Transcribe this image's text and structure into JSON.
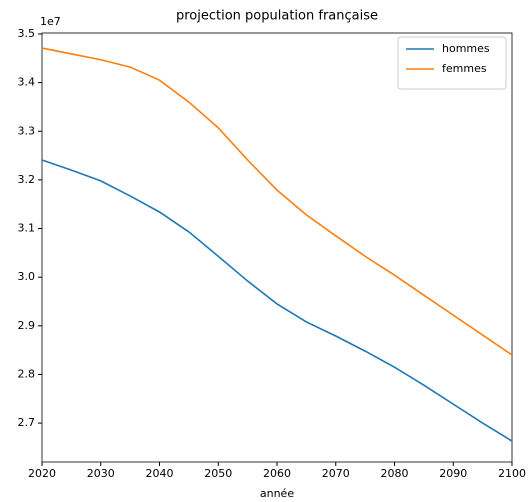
{
  "chart_data": {
    "type": "line",
    "title": "projection population française",
    "xlabel": "année",
    "y_offset_label": "1e7",
    "x": [
      2020,
      2025,
      2030,
      2035,
      2040,
      2045,
      2050,
      2055,
      2060,
      2065,
      2070,
      2075,
      2080,
      2085,
      2090,
      2095,
      2100
    ],
    "series": [
      {
        "name": "hommes",
        "color": "#1f77b4",
        "values": [
          32410000,
          32200000,
          31980000,
          31670000,
          31340000,
          30930000,
          30430000,
          29920000,
          29450000,
          29080000,
          28790000,
          28480000,
          28150000,
          27780000,
          27390000,
          27000000,
          26630000
        ]
      },
      {
        "name": "femmes",
        "color": "#ff7f0e",
        "values": [
          34710000,
          34590000,
          34470000,
          34320000,
          34050000,
          33600000,
          33070000,
          32410000,
          31790000,
          31280000,
          30850000,
          30430000,
          30040000,
          29630000,
          29220000,
          28810000,
          28400000
        ]
      }
    ],
    "xlim": [
      2020,
      2100
    ],
    "xticks": [
      2020,
      2030,
      2040,
      2050,
      2060,
      2070,
      2080,
      2090,
      2100
    ],
    "ylim": [
      26200000,
      35020000
    ],
    "yticks": [
      {
        "value": 27000000,
        "label": "2.7"
      },
      {
        "value": 28000000,
        "label": "2.8"
      },
      {
        "value": 29000000,
        "label": "2.9"
      },
      {
        "value": 30000000,
        "label": "3.0"
      },
      {
        "value": 31000000,
        "label": "3.1"
      },
      {
        "value": 32000000,
        "label": "3.2"
      },
      {
        "value": 33000000,
        "label": "3.3"
      },
      {
        "value": 34000000,
        "label": "3.4"
      },
      {
        "value": 35000000,
        "label": "3.5"
      }
    ],
    "legend": "upper right",
    "grid": false
  }
}
